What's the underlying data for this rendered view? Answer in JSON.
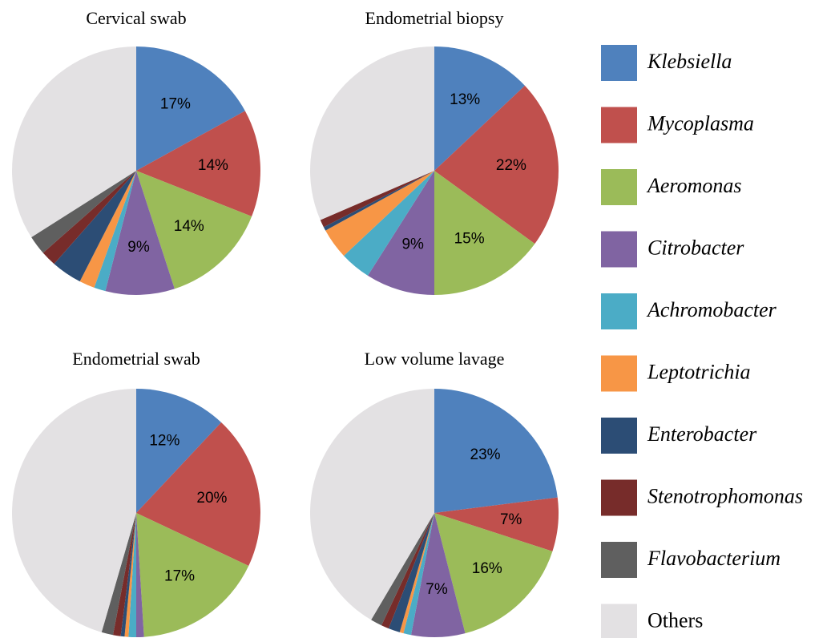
{
  "chart_data": [
    {
      "type": "pie",
      "title": "Cervical swab",
      "values": [
        17,
        14,
        14,
        9,
        1.5,
        2,
        4,
        2,
        2.5,
        34
      ],
      "value_labels": [
        "17%",
        "14%",
        "14%",
        "9%",
        null,
        null,
        null,
        null,
        null,
        null
      ]
    },
    {
      "type": "pie",
      "title": "Endometrial biopsy",
      "values": [
        13,
        22,
        15,
        9,
        4,
        4,
        0.5,
        1,
        0,
        31.5
      ],
      "value_labels": [
        "13%",
        "22%",
        "15%",
        "9%",
        null,
        null,
        null,
        null,
        null,
        null
      ]
    },
    {
      "type": "pie",
      "title": "Endometrial swab",
      "values": [
        12,
        20,
        17,
        1,
        1,
        0.5,
        0.5,
        1,
        1.5,
        45.5
      ],
      "value_labels": [
        "12%",
        "20%",
        "17%",
        null,
        null,
        null,
        null,
        null,
        null,
        null
      ]
    },
    {
      "type": "pie",
      "title": "Low volume lavage",
      "values": [
        23,
        7,
        16,
        7,
        1,
        0.5,
        1.5,
        1,
        1.5,
        41.5
      ],
      "value_labels": [
        "23%",
        "7%",
        "16%",
        "7%",
        null,
        null,
        null,
        null,
        null,
        null
      ]
    }
  ],
  "legend": {
    "labels": [
      "Klebsiella",
      "Mycoplasma",
      "Aeromonas",
      "Citrobacter",
      "Achromobacter",
      "Leptotrichia",
      "Enterobacter",
      "Stenotrophomonas",
      "Flavobacterium",
      "Others"
    ],
    "colors": [
      "#4f81bd",
      "#c0504d",
      "#9bbb59",
      "#8064a2",
      "#4bacc6",
      "#f79646",
      "#2c4d75",
      "#772c2a",
      "#5f5f5f",
      "#e3e1e3"
    ]
  }
}
